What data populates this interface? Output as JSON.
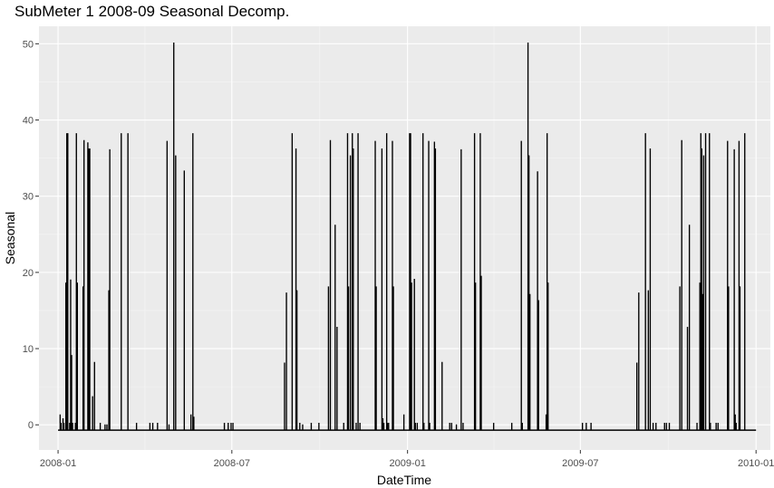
{
  "chart_data": {
    "type": "line",
    "title": "SubMeter 1 2008-09 Seasonal Decomp.",
    "xlabel": "DateTime",
    "ylabel": "Seasonal",
    "x_ticks": [
      "2008-01",
      "2008-07",
      "2009-01",
      "2009-07",
      "2010-01"
    ],
    "y_ticks": [
      0,
      10,
      20,
      30,
      40,
      50
    ],
    "xlim": [
      "2007-12-12",
      "2010-01-16"
    ],
    "ylim": [
      -3.3,
      52.3
    ],
    "baseline": -0.7,
    "grid": true,
    "colors": {
      "panel": "#EBEBEB",
      "grid_major": "#FFFFFF",
      "grid_minor": "#F5F5F5",
      "line": "#000000",
      "tick_text": "#4D4D4D"
    },
    "spikes": [
      [
        "2008-01-03",
        1.3
      ],
      [
        "2008-01-04",
        0.2
      ],
      [
        "2008-01-06",
        0.8
      ],
      [
        "2008-01-07",
        0.2
      ],
      [
        "2008-01-09",
        18.6
      ],
      [
        "2008-01-10",
        38.2
      ],
      [
        "2008-01-11",
        38.2
      ],
      [
        "2008-01-13",
        0.2
      ],
      [
        "2008-01-14",
        19.0
      ],
      [
        "2008-01-15",
        9.1
      ],
      [
        "2008-01-16",
        0.2
      ],
      [
        "2008-01-19",
        0.2
      ],
      [
        "2008-01-20",
        38.2
      ],
      [
        "2008-01-21",
        18.6
      ],
      [
        "2008-01-27",
        18.1
      ],
      [
        "2008-01-28",
        37.3
      ],
      [
        "2008-02-01",
        37.0
      ],
      [
        "2008-02-02",
        36.2
      ],
      [
        "2008-02-03",
        36.2
      ],
      [
        "2008-02-06",
        3.7
      ],
      [
        "2008-02-08",
        8.2
      ],
      [
        "2008-02-14",
        0.2
      ],
      [
        "2008-02-19",
        0.0
      ],
      [
        "2008-02-21",
        0.0
      ],
      [
        "2008-02-24",
        36.1
      ],
      [
        "2008-02-23",
        17.6
      ],
      [
        "2008-03-07",
        38.2
      ],
      [
        "2008-03-14",
        38.2
      ],
      [
        "2008-03-23",
        0.2
      ],
      [
        "2008-04-06",
        0.2
      ],
      [
        "2008-04-09",
        0.2
      ],
      [
        "2008-04-14",
        0.2
      ],
      [
        "2008-04-24",
        37.2
      ],
      [
        "2008-04-26",
        0.0
      ],
      [
        "2008-05-01",
        50.1
      ],
      [
        "2008-05-03",
        35.3
      ],
      [
        "2008-05-12",
        33.3
      ],
      [
        "2008-05-19",
        1.3
      ],
      [
        "2008-05-21",
        38.2
      ],
      [
        "2008-05-22",
        1.0
      ],
      [
        "2008-06-23",
        0.2
      ],
      [
        "2008-06-27",
        0.2
      ],
      [
        "2008-06-30",
        0.2
      ],
      [
        "2008-07-02",
        0.2
      ],
      [
        "2008-08-25",
        8.1
      ],
      [
        "2008-08-27",
        17.3
      ],
      [
        "2008-09-02",
        38.2
      ],
      [
        "2008-09-06",
        36.2
      ],
      [
        "2008-09-07",
        17.6
      ],
      [
        "2008-09-10",
        0.2
      ],
      [
        "2008-09-13",
        0.0
      ],
      [
        "2008-09-22",
        0.2
      ],
      [
        "2008-09-30",
        0.2
      ],
      [
        "2008-10-10",
        18.1
      ],
      [
        "2008-10-12",
        37.3
      ],
      [
        "2008-10-17",
        26.2
      ],
      [
        "2008-10-19",
        12.8
      ],
      [
        "2008-10-26",
        0.2
      ],
      [
        "2008-10-30",
        38.2
      ],
      [
        "2008-10-31",
        18.1
      ],
      [
        "2008-11-02",
        35.3
      ],
      [
        "2008-11-04",
        38.2
      ],
      [
        "2008-11-05",
        36.2
      ],
      [
        "2008-11-08",
        0.2
      ],
      [
        "2008-11-10",
        38.2
      ],
      [
        "2008-11-12",
        0.2
      ],
      [
        "2008-11-28",
        37.2
      ],
      [
        "2008-11-29",
        18.1
      ],
      [
        "2008-12-05",
        36.2
      ],
      [
        "2008-12-06",
        0.8
      ],
      [
        "2008-12-07",
        0.2
      ],
      [
        "2008-12-10",
        38.2
      ],
      [
        "2008-12-11",
        0.2
      ],
      [
        "2008-12-12",
        0.2
      ],
      [
        "2008-12-16",
        37.2
      ],
      [
        "2008-12-17",
        18.1
      ],
      [
        "2008-12-28",
        1.3
      ],
      [
        "2009-01-03",
        38.2
      ],
      [
        "2009-01-04",
        38.2
      ],
      [
        "2009-01-05",
        18.6
      ],
      [
        "2009-01-08",
        19.1
      ],
      [
        "2009-01-09",
        0.2
      ],
      [
        "2009-01-11",
        0.2
      ],
      [
        "2009-01-17",
        38.2
      ],
      [
        "2009-01-18",
        0.2
      ],
      [
        "2009-01-23",
        37.2
      ],
      [
        "2009-01-24",
        0.2
      ],
      [
        "2009-01-29",
        37.1
      ],
      [
        "2009-01-30",
        36.2
      ],
      [
        "2009-02-06",
        8.2
      ],
      [
        "2009-02-14",
        0.2
      ],
      [
        "2009-02-16",
        0.2
      ],
      [
        "2009-02-21",
        0.0
      ],
      [
        "2009-02-26",
        36.1
      ],
      [
        "2009-02-28",
        0.2
      ],
      [
        "2009-03-12",
        38.2
      ],
      [
        "2009-03-13",
        18.6
      ],
      [
        "2009-03-18",
        38.2
      ],
      [
        "2009-03-19",
        19.5
      ],
      [
        "2009-04-01",
        0.2
      ],
      [
        "2009-04-20",
        0.2
      ],
      [
        "2009-04-30",
        37.2
      ],
      [
        "2009-05-01",
        0.2
      ],
      [
        "2009-05-07",
        50.1
      ],
      [
        "2009-05-08",
        35.3
      ],
      [
        "2009-05-09",
        17.1
      ],
      [
        "2009-05-17",
        33.2
      ],
      [
        "2009-05-18",
        16.3
      ],
      [
        "2009-05-26",
        1.3
      ],
      [
        "2009-05-27",
        38.2
      ],
      [
        "2009-05-28",
        18.6
      ],
      [
        "2009-07-03",
        0.2
      ],
      [
        "2009-07-07",
        0.2
      ],
      [
        "2009-07-12",
        0.2
      ],
      [
        "2009-08-29",
        8.1
      ],
      [
        "2009-08-31",
        17.3
      ],
      [
        "2009-09-07",
        38.2
      ],
      [
        "2009-09-10",
        17.6
      ],
      [
        "2009-09-12",
        36.2
      ],
      [
        "2009-09-15",
        0.2
      ],
      [
        "2009-09-18",
        0.2
      ],
      [
        "2009-09-27",
        0.2
      ],
      [
        "2009-09-29",
        0.2
      ],
      [
        "2009-10-02",
        0.2
      ],
      [
        "2009-10-13",
        18.1
      ],
      [
        "2009-10-15",
        37.3
      ],
      [
        "2009-10-21",
        12.8
      ],
      [
        "2009-10-23",
        26.2
      ],
      [
        "2009-10-31",
        0.2
      ],
      [
        "2009-11-03",
        18.6
      ],
      [
        "2009-11-04",
        38.2
      ],
      [
        "2009-11-05",
        36.2
      ],
      [
        "2009-11-06",
        17.1
      ],
      [
        "2009-11-07",
        35.3
      ],
      [
        "2009-11-09",
        38.2
      ],
      [
        "2009-11-13",
        38.2
      ],
      [
        "2009-11-14",
        0.2
      ],
      [
        "2009-11-20",
        0.2
      ],
      [
        "2009-11-22",
        0.2
      ],
      [
        "2009-12-02",
        37.2
      ],
      [
        "2009-12-03",
        18.1
      ],
      [
        "2009-12-09",
        36.1
      ],
      [
        "2009-12-10",
        1.3
      ],
      [
        "2009-12-11",
        0.2
      ],
      [
        "2009-12-14",
        37.2
      ],
      [
        "2009-12-15",
        18.1
      ],
      [
        "2009-12-20",
        38.2
      ]
    ]
  }
}
